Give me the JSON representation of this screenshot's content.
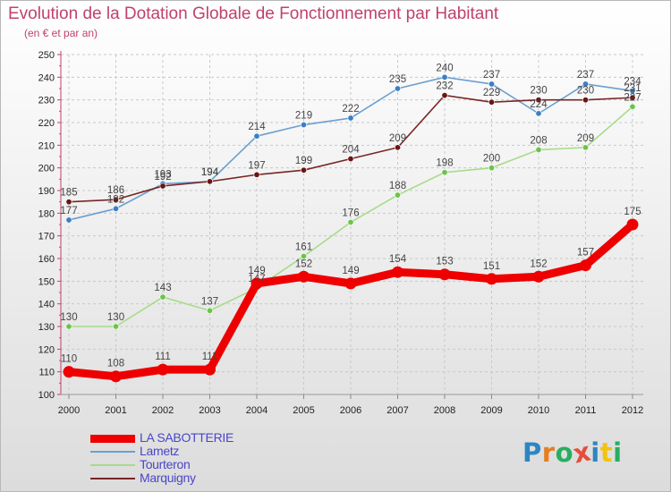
{
  "title": "Evolution de la Dotation Globale de Fonctionnement par Habitant",
  "subtitle": "(en € et par an)",
  "logo": {
    "text": "Proxiti",
    "letter_colors": [
      "#2e86c1",
      "#e67e22",
      "#27ae60",
      "#e74c3c",
      "#2e86c1",
      "#f1c40f",
      "#27ae60"
    ]
  },
  "chart_data": {
    "type": "line",
    "title": "Evolution de la Dotation Globale de Fonctionnement par Habitant",
    "subtitle": "(en € et par an)",
    "x": [
      "2000",
      "2001",
      "2002",
      "2003",
      "2004",
      "2005",
      "2006",
      "2007",
      "2008",
      "2009",
      "2010",
      "2011",
      "2012"
    ],
    "ylim": [
      100,
      250
    ],
    "yticks": [
      100,
      110,
      120,
      130,
      140,
      150,
      160,
      170,
      180,
      190,
      200,
      210,
      220,
      230,
      240,
      250
    ],
    "grid": "horizontal dashed",
    "legend_position": "bottom-left",
    "series": [
      {
        "name": "LA SABOTTERIE",
        "color": "#ee0000",
        "emphasis": true,
        "values": [
          110,
          108,
          111,
          111,
          149,
          152,
          149,
          154,
          153,
          151,
          152,
          157,
          175
        ],
        "labels": [
          "110",
          "108",
          "111",
          "111",
          "149",
          "152",
          "149",
          "154",
          "153",
          "151",
          "152",
          "157",
          "175"
        ]
      },
      {
        "name": "Lametz",
        "color": "#6a9fd0",
        "marker": "#3b7fc4",
        "values": [
          177,
          182,
          193,
          194,
          214,
          219,
          222,
          235,
          240,
          237,
          224,
          237,
          234
        ],
        "labels": [
          "177",
          "182",
          "193",
          "194",
          "214",
          "219",
          "222",
          "235",
          "240",
          "237",
          "224",
          "237",
          "234"
        ]
      },
      {
        "name": "Tourteron",
        "color": "#a6dc88",
        "marker": "#6cc34a",
        "values": [
          130,
          130,
          143,
          137,
          147,
          161,
          176,
          188,
          198,
          200,
          208,
          209,
          227
        ],
        "labels": [
          "130",
          "130",
          "143",
          "137",
          "147",
          "161",
          "176",
          "188",
          "198",
          "200",
          "208",
          "209",
          "227"
        ]
      },
      {
        "name": "Marquigny",
        "color": "#7a2525",
        "marker": "#6b1414",
        "values": [
          185,
          186,
          192,
          194,
          197,
          199,
          204,
          209,
          232,
          229,
          230,
          230,
          231
        ],
        "labels": [
          "185",
          "186",
          "192",
          "194",
          "197",
          "199",
          "204",
          "209",
          "232",
          "229",
          "230",
          "230",
          "231"
        ]
      }
    ]
  }
}
